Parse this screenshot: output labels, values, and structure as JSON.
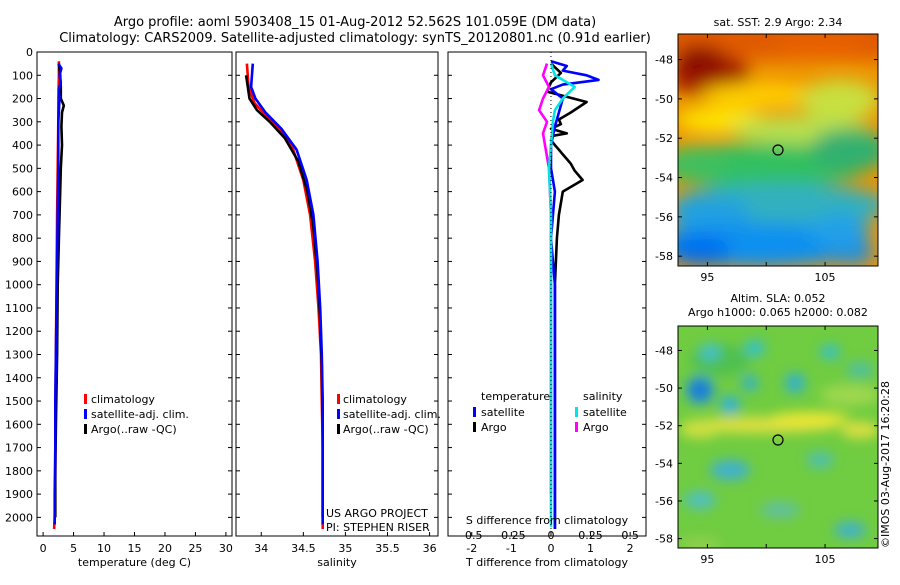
{
  "header": {
    "title_line1": "Argo profile: aoml 5903408_15 01-Aug-2012 52.562S 101.059E (DM data)",
    "title_line2": "Climatology: CARS2009. Satellite-adjusted climatology: synTS_20120801.nc (0.91d earlier)"
  },
  "colors": {
    "climatology": "#ff0000",
    "satellite_adj": "#0000ff",
    "argo": "#000000",
    "salinity_satellite": "#00e5e5",
    "salinity_argo": "#ff00ff"
  },
  "chart_data": [
    {
      "type": "line",
      "id": "temperature",
      "xlabel": "temperature (deg C)",
      "ylabel": "",
      "xlim": [
        -1,
        31
      ],
      "ylim": [
        2080,
        0
      ],
      "xticks": [
        0,
        5,
        10,
        15,
        20,
        25,
        30
      ],
      "yticks": [
        0,
        100,
        200,
        300,
        400,
        500,
        600,
        700,
        800,
        900,
        1000,
        1100,
        1200,
        1300,
        1400,
        1500,
        1600,
        1700,
        1800,
        1900,
        2000
      ],
      "legend": [
        "climatology",
        "satellite-adj. clim.",
        "Argo(..raw -QC)"
      ],
      "series": [
        {
          "name": "climatology",
          "color": "#ff0000",
          "x": [
            2.6,
            2.6,
            2.5,
            2.5,
            2.4,
            2.3,
            2.2,
            2.1,
            2.0,
            2.0,
            1.9,
            1.8
          ],
          "y": [
            40,
            100,
            200,
            300,
            500,
            700,
            1000,
            1300,
            1600,
            1800,
            2000,
            2050
          ]
        },
        {
          "name": "Argo(..raw -QC)",
          "color": "#000000",
          "x": [
            2.6,
            2.8,
            2.9,
            2.9,
            3.4,
            3.1,
            3.0,
            3.1,
            2.9,
            2.8,
            2.6,
            2.4,
            2.3,
            2.1,
            2.0,
            2.0
          ],
          "y": [
            50,
            100,
            150,
            200,
            230,
            260,
            320,
            400,
            500,
            600,
            800,
            1000,
            1300,
            1600,
            1800,
            2000
          ]
        },
        {
          "name": "satellite-adj. clim.",
          "color": "#0000ff",
          "x": [
            2.5,
            3.0,
            2.7,
            2.9,
            2.6,
            2.7,
            2.6,
            2.5,
            2.5,
            2.4,
            2.3,
            2.2,
            2.1,
            2.0,
            2.0,
            1.9,
            1.9
          ],
          "y": [
            50,
            70,
            100,
            130,
            160,
            200,
            250,
            300,
            500,
            700,
            900,
            1100,
            1300,
            1500,
            1700,
            1900,
            2030
          ]
        }
      ]
    },
    {
      "type": "line",
      "id": "salinity",
      "xlabel": "salinity",
      "ylabel": "",
      "xlim": [
        33.7,
        36.1
      ],
      "ylim": [
        2080,
        0
      ],
      "xticks": [
        34,
        34.5,
        35,
        35.5,
        36
      ],
      "xtick_labels": [
        "34",
        "34.5",
        "35",
        "35.5",
        "36"
      ],
      "yticks": [
        0,
        100,
        200,
        300,
        400,
        500,
        600,
        700,
        800,
        900,
        1000,
        1100,
        1200,
        1300,
        1400,
        1500,
        1600,
        1700,
        1800,
        1900,
        2000
      ],
      "legend": [
        "climatology",
        "satellite-adj. clim.",
        "Argo(..raw -QC)"
      ],
      "series": [
        {
          "name": "climatology",
          "color": "#ff0000",
          "x": [
            33.83,
            33.85,
            33.92,
            34.05,
            34.22,
            34.38,
            34.5,
            34.58,
            34.64,
            34.68,
            34.71,
            34.72,
            34.73,
            34.73,
            34.73
          ],
          "y": [
            50,
            150,
            220,
            270,
            330,
            420,
            550,
            700,
            900,
            1100,
            1300,
            1500,
            1700,
            1900,
            2050
          ]
        },
        {
          "name": "Argo(..raw -QC)",
          "color": "#000000",
          "x": [
            33.82,
            33.86,
            33.95,
            34.1,
            34.28,
            34.44,
            34.55,
            34.62,
            34.67,
            34.7,
            34.72,
            34.73,
            34.73,
            34.73
          ],
          "y": [
            100,
            200,
            250,
            300,
            370,
            470,
            600,
            750,
            950,
            1150,
            1350,
            1600,
            1800,
            2000
          ]
        },
        {
          "name": "satellite-adj. clim.",
          "color": "#0000ff",
          "x": [
            33.9,
            33.88,
            33.93,
            34.05,
            34.24,
            34.42,
            34.54,
            34.62,
            34.67,
            34.7,
            34.72,
            34.73,
            34.73,
            34.73
          ],
          "y": [
            50,
            150,
            200,
            260,
            330,
            420,
            550,
            700,
            900,
            1100,
            1300,
            1500,
            1700,
            2030
          ]
        }
      ],
      "annotation_line1": "US ARGO PROJECT",
      "annotation_line2": "PI: STEPHEN RISER"
    },
    {
      "type": "line",
      "id": "difference",
      "xlabel": "T difference from climatology",
      "top_xlabel": "S difference from climatology",
      "xlim": [
        -2.6,
        2.4
      ],
      "ylim": [
        2080,
        0
      ],
      "xticks": [
        -2,
        -1,
        0,
        1,
        2
      ],
      "top_xticks": [
        -0.5,
        -0.25,
        0,
        0.25,
        0.5
      ],
      "top_xtick_labels": [
        "-0.5",
        "-0.25",
        "0",
        "0.25",
        "0.5"
      ],
      "yticks": [
        0,
        100,
        200,
        300,
        400,
        500,
        600,
        700,
        800,
        900,
        1000,
        1100,
        1200,
        1300,
        1400,
        1500,
        1600,
        1700,
        1800,
        1900,
        2000
      ],
      "legend_temperature_title": "temperature",
      "legend_salinity_title": "salinity",
      "legend_temperature": [
        "satellite",
        "Argo"
      ],
      "legend_salinity": [
        "satellite",
        "Argo"
      ],
      "series": [
        {
          "name": "temperature Argo",
          "color": "#000000",
          "x": [
            0.0,
            0.25,
            0.0,
            -0.1,
            0.9,
            0.5,
            0.2,
            0.25,
            0.0,
            0.4,
            0.05,
            0.0,
            0.1,
            0.2,
            0.3,
            0.4,
            0.5,
            0.6,
            0.8,
            0.3,
            0.2,
            0.15,
            0.1,
            0.1,
            0.1,
            0.1,
            0.1,
            0.1,
            0.1
          ],
          "y": [
            50,
            90,
            130,
            170,
            215,
            260,
            290,
            310,
            330,
            350,
            360,
            380,
            400,
            420,
            440,
            460,
            480,
            510,
            550,
            600,
            700,
            800,
            1000,
            1200,
            1400,
            1600,
            1800,
            2000,
            2050
          ]
        },
        {
          "name": "temperature satellite",
          "color": "#0000ff",
          "x": [
            0.0,
            0.4,
            0.3,
            0.9,
            1.2,
            0.3,
            0.0,
            0.3,
            0.2,
            0.1,
            0.0,
            0.0,
            0.1,
            0.0,
            0.1,
            0.1,
            0.1,
            0.1,
            0.1,
            0.1,
            0.1,
            0.1
          ],
          "y": [
            40,
            60,
            80,
            100,
            120,
            140,
            160,
            200,
            260,
            320,
            400,
            500,
            600,
            800,
            1000,
            1200,
            1400,
            1600,
            1800,
            1900,
            2000,
            2050
          ]
        },
        {
          "name": "salinity Argo",
          "color": "#ff00ff",
          "x": [
            -0.1,
            -0.2,
            -0.05,
            -0.2,
            -0.3,
            -0.1,
            -0.2,
            -0.15,
            -0.05,
            0.0,
            0.0,
            0.0,
            0.0,
            0.0,
            0.0,
            0.0
          ],
          "y": [
            50,
            100,
            150,
            200,
            250,
            300,
            350,
            400,
            500,
            700,
            900,
            1100,
            1300,
            1500,
            1700,
            1900
          ]
        },
        {
          "name": "salinity satellite",
          "color": "#00e5e5",
          "x": [
            0.0,
            0.1,
            0.6,
            0.3,
            0.1,
            0.05,
            0.0,
            -0.05,
            0.0,
            0.0,
            0.0,
            0.0,
            0.0,
            0.0,
            0.0,
            0.0
          ],
          "y": [
            50,
            100,
            150,
            200,
            250,
            300,
            400,
            500,
            700,
            900,
            1100,
            1300,
            1500,
            1700,
            1900,
            2040
          ]
        }
      ]
    },
    {
      "type": "heatmap",
      "id": "sst_map",
      "title": "sat. SST: 2.9 Argo: 2.34",
      "xticks": [
        95,
        100,
        105
      ],
      "xtick_labels": [
        "95",
        "",
        "105"
      ],
      "yticks": [
        -48,
        -50,
        -52,
        -54,
        -56,
        -58
      ],
      "xlim": [
        92.5,
        109.5
      ],
      "ylim": [
        -58.5,
        -46.7
      ],
      "marker": [
        101.06,
        -52.56
      ]
    },
    {
      "type": "heatmap",
      "id": "sla_map",
      "title_line1": "Altim. SLA: 0.052",
      "title_line2": "Argo h1000: 0.065 h2000: 0.082",
      "xticks": [
        95,
        100,
        105
      ],
      "xtick_labels": [
        "95",
        "",
        "105"
      ],
      "yticks": [
        -48,
        -50,
        -52,
        -54,
        -56,
        -58
      ],
      "xlim": [
        92.5,
        109.5
      ],
      "ylim": [
        -58.5,
        -46.7
      ],
      "marker": [
        101.06,
        -52.56
      ]
    }
  ],
  "footer": {
    "credit": "©IMOS 03-Aug-2017 16:20:28"
  }
}
